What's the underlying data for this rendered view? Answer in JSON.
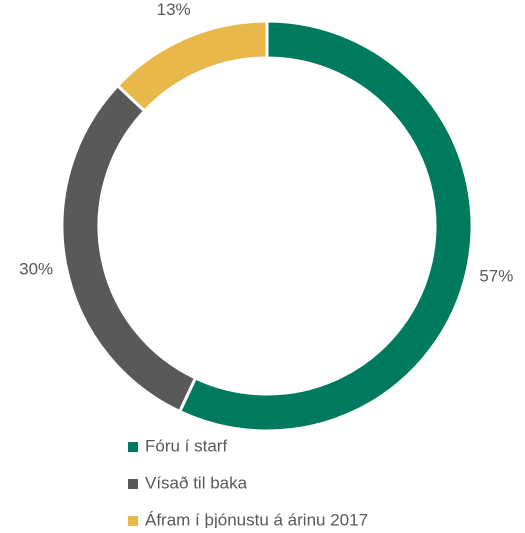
{
  "chart_data": {
    "type": "pie",
    "categories": [
      "Fóru í starf",
      "Vísað til baka",
      "Áfram í þjónustu á árinu 2017"
    ],
    "values": [
      57,
      30,
      13
    ],
    "value_labels": [
      "57%",
      "30%",
      "13%"
    ],
    "colors": [
      "#007a5e",
      "#595959",
      "#e8b84b"
    ],
    "donut": true,
    "legend": "bottom"
  }
}
